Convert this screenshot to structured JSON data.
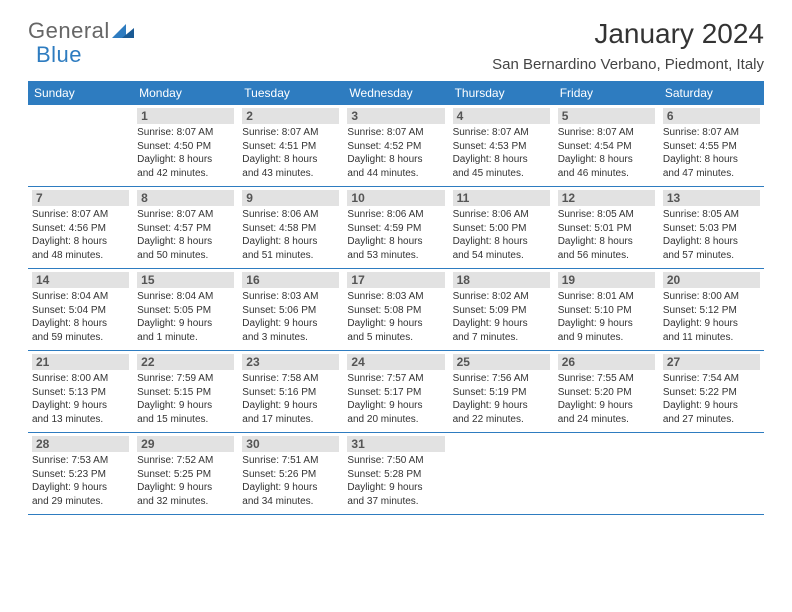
{
  "brand": {
    "word1": "General",
    "word2": "Blue"
  },
  "title": "January 2024",
  "location": "San Bernardino Verbano, Piedmont, Italy",
  "colors": {
    "header_bg": "#2e7cc0",
    "header_text": "#ffffff",
    "daynum_bg": "#e2e2e2",
    "daynum_text": "#555555",
    "cell_border": "#2e7cc0",
    "body_text": "#333333"
  },
  "dayHeaders": [
    "Sunday",
    "Monday",
    "Tuesday",
    "Wednesday",
    "Thursday",
    "Friday",
    "Saturday"
  ],
  "weeks": [
    [
      null,
      {
        "n": "1",
        "sr": "Sunrise: 8:07 AM",
        "ss": "Sunset: 4:50 PM",
        "dl1": "Daylight: 8 hours",
        "dl2": "and 42 minutes."
      },
      {
        "n": "2",
        "sr": "Sunrise: 8:07 AM",
        "ss": "Sunset: 4:51 PM",
        "dl1": "Daylight: 8 hours",
        "dl2": "and 43 minutes."
      },
      {
        "n": "3",
        "sr": "Sunrise: 8:07 AM",
        "ss": "Sunset: 4:52 PM",
        "dl1": "Daylight: 8 hours",
        "dl2": "and 44 minutes."
      },
      {
        "n": "4",
        "sr": "Sunrise: 8:07 AM",
        "ss": "Sunset: 4:53 PM",
        "dl1": "Daylight: 8 hours",
        "dl2": "and 45 minutes."
      },
      {
        "n": "5",
        "sr": "Sunrise: 8:07 AM",
        "ss": "Sunset: 4:54 PM",
        "dl1": "Daylight: 8 hours",
        "dl2": "and 46 minutes."
      },
      {
        "n": "6",
        "sr": "Sunrise: 8:07 AM",
        "ss": "Sunset: 4:55 PM",
        "dl1": "Daylight: 8 hours",
        "dl2": "and 47 minutes."
      }
    ],
    [
      {
        "n": "7",
        "sr": "Sunrise: 8:07 AM",
        "ss": "Sunset: 4:56 PM",
        "dl1": "Daylight: 8 hours",
        "dl2": "and 48 minutes."
      },
      {
        "n": "8",
        "sr": "Sunrise: 8:07 AM",
        "ss": "Sunset: 4:57 PM",
        "dl1": "Daylight: 8 hours",
        "dl2": "and 50 minutes."
      },
      {
        "n": "9",
        "sr": "Sunrise: 8:06 AM",
        "ss": "Sunset: 4:58 PM",
        "dl1": "Daylight: 8 hours",
        "dl2": "and 51 minutes."
      },
      {
        "n": "10",
        "sr": "Sunrise: 8:06 AM",
        "ss": "Sunset: 4:59 PM",
        "dl1": "Daylight: 8 hours",
        "dl2": "and 53 minutes."
      },
      {
        "n": "11",
        "sr": "Sunrise: 8:06 AM",
        "ss": "Sunset: 5:00 PM",
        "dl1": "Daylight: 8 hours",
        "dl2": "and 54 minutes."
      },
      {
        "n": "12",
        "sr": "Sunrise: 8:05 AM",
        "ss": "Sunset: 5:01 PM",
        "dl1": "Daylight: 8 hours",
        "dl2": "and 56 minutes."
      },
      {
        "n": "13",
        "sr": "Sunrise: 8:05 AM",
        "ss": "Sunset: 5:03 PM",
        "dl1": "Daylight: 8 hours",
        "dl2": "and 57 minutes."
      }
    ],
    [
      {
        "n": "14",
        "sr": "Sunrise: 8:04 AM",
        "ss": "Sunset: 5:04 PM",
        "dl1": "Daylight: 8 hours",
        "dl2": "and 59 minutes."
      },
      {
        "n": "15",
        "sr": "Sunrise: 8:04 AM",
        "ss": "Sunset: 5:05 PM",
        "dl1": "Daylight: 9 hours",
        "dl2": "and 1 minute."
      },
      {
        "n": "16",
        "sr": "Sunrise: 8:03 AM",
        "ss": "Sunset: 5:06 PM",
        "dl1": "Daylight: 9 hours",
        "dl2": "and 3 minutes."
      },
      {
        "n": "17",
        "sr": "Sunrise: 8:03 AM",
        "ss": "Sunset: 5:08 PM",
        "dl1": "Daylight: 9 hours",
        "dl2": "and 5 minutes."
      },
      {
        "n": "18",
        "sr": "Sunrise: 8:02 AM",
        "ss": "Sunset: 5:09 PM",
        "dl1": "Daylight: 9 hours",
        "dl2": "and 7 minutes."
      },
      {
        "n": "19",
        "sr": "Sunrise: 8:01 AM",
        "ss": "Sunset: 5:10 PM",
        "dl1": "Daylight: 9 hours",
        "dl2": "and 9 minutes."
      },
      {
        "n": "20",
        "sr": "Sunrise: 8:00 AM",
        "ss": "Sunset: 5:12 PM",
        "dl1": "Daylight: 9 hours",
        "dl2": "and 11 minutes."
      }
    ],
    [
      {
        "n": "21",
        "sr": "Sunrise: 8:00 AM",
        "ss": "Sunset: 5:13 PM",
        "dl1": "Daylight: 9 hours",
        "dl2": "and 13 minutes."
      },
      {
        "n": "22",
        "sr": "Sunrise: 7:59 AM",
        "ss": "Sunset: 5:15 PM",
        "dl1": "Daylight: 9 hours",
        "dl2": "and 15 minutes."
      },
      {
        "n": "23",
        "sr": "Sunrise: 7:58 AM",
        "ss": "Sunset: 5:16 PM",
        "dl1": "Daylight: 9 hours",
        "dl2": "and 17 minutes."
      },
      {
        "n": "24",
        "sr": "Sunrise: 7:57 AM",
        "ss": "Sunset: 5:17 PM",
        "dl1": "Daylight: 9 hours",
        "dl2": "and 20 minutes."
      },
      {
        "n": "25",
        "sr": "Sunrise: 7:56 AM",
        "ss": "Sunset: 5:19 PM",
        "dl1": "Daylight: 9 hours",
        "dl2": "and 22 minutes."
      },
      {
        "n": "26",
        "sr": "Sunrise: 7:55 AM",
        "ss": "Sunset: 5:20 PM",
        "dl1": "Daylight: 9 hours",
        "dl2": "and 24 minutes."
      },
      {
        "n": "27",
        "sr": "Sunrise: 7:54 AM",
        "ss": "Sunset: 5:22 PM",
        "dl1": "Daylight: 9 hours",
        "dl2": "and 27 minutes."
      }
    ],
    [
      {
        "n": "28",
        "sr": "Sunrise: 7:53 AM",
        "ss": "Sunset: 5:23 PM",
        "dl1": "Daylight: 9 hours",
        "dl2": "and 29 minutes."
      },
      {
        "n": "29",
        "sr": "Sunrise: 7:52 AM",
        "ss": "Sunset: 5:25 PM",
        "dl1": "Daylight: 9 hours",
        "dl2": "and 32 minutes."
      },
      {
        "n": "30",
        "sr": "Sunrise: 7:51 AM",
        "ss": "Sunset: 5:26 PM",
        "dl1": "Daylight: 9 hours",
        "dl2": "and 34 minutes."
      },
      {
        "n": "31",
        "sr": "Sunrise: 7:50 AM",
        "ss": "Sunset: 5:28 PM",
        "dl1": "Daylight: 9 hours",
        "dl2": "and 37 minutes."
      },
      null,
      null,
      null
    ]
  ]
}
